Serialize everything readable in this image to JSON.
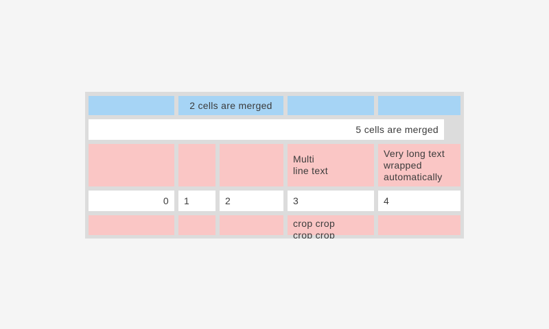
{
  "app": {
    "background": "#f5f5f5"
  },
  "table": {
    "background": "#dcdcdc",
    "text_color": "#3b3b3b",
    "cell_colors": {
      "blue": "#a6d4f5",
      "pink": "#fac6c5",
      "white": "#ffffff"
    },
    "rows": [
      {
        "name": "header-row",
        "cells": [
          {
            "text": ""
          },
          {
            "text": "2 cells are merged"
          },
          {
            "text": ""
          },
          {
            "text": ""
          }
        ]
      },
      {
        "name": "full-merge-row",
        "cells": [
          {
            "text": "5 cells are merged"
          }
        ]
      },
      {
        "name": "multiline-row",
        "cells": [
          {
            "text": ""
          },
          {
            "text": ""
          },
          {
            "text": ""
          },
          {
            "text": "Multi\nline text"
          },
          {
            "text": "Very long text wrapped automatically"
          }
        ]
      },
      {
        "name": "numbers-row",
        "cells": [
          {
            "text": "0"
          },
          {
            "text": "1"
          },
          {
            "text": "2"
          },
          {
            "text": "3"
          },
          {
            "text": "4"
          }
        ]
      },
      {
        "name": "crop-row",
        "cells": [
          {
            "text": ""
          },
          {
            "text": ""
          },
          {
            "text": ""
          },
          {
            "text": "crop crop crop crop"
          },
          {
            "text": ""
          }
        ]
      }
    ]
  }
}
